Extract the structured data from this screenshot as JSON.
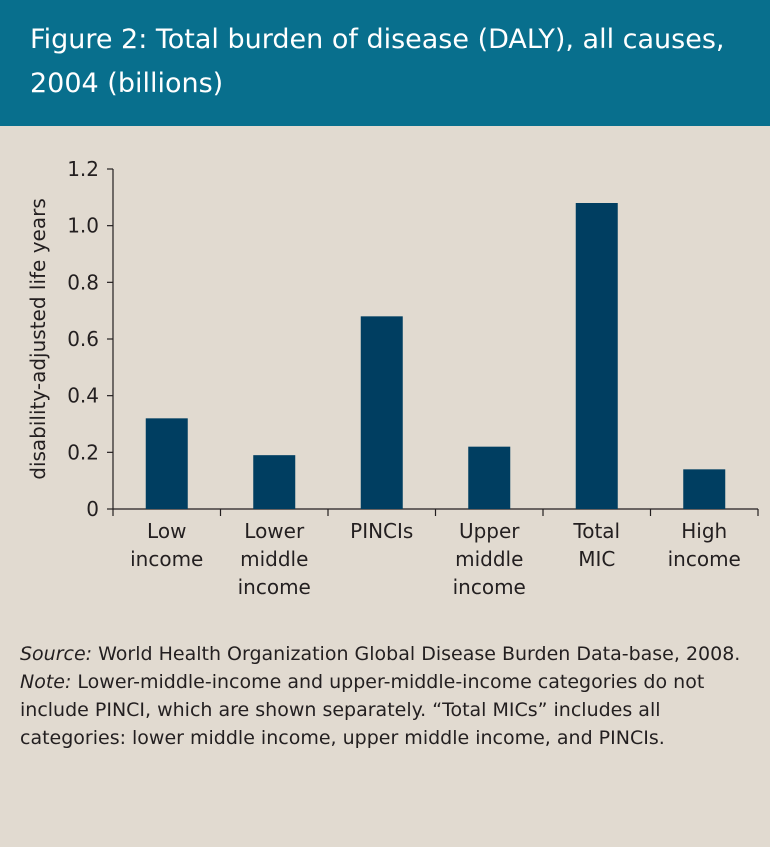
{
  "header": {
    "title_line1": "Figure 2: Total burden of disease (DALY), all causes,",
    "title_line2": "2004 (billions)"
  },
  "chart_data": {
    "type": "bar",
    "title": "Figure 2: Total burden of disease (DALY), all causes, 2004 (billions)",
    "ylabel": "disability-adjusted life years",
    "categories": [
      [
        "Low",
        "income"
      ],
      [
        "Lower",
        "middle",
        "income"
      ],
      [
        "PINCIs"
      ],
      [
        "Upper",
        "middle",
        "income"
      ],
      [
        "Total",
        "MIC"
      ],
      [
        "High",
        "income"
      ]
    ],
    "values": [
      0.32,
      0.19,
      0.68,
      0.22,
      1.08,
      0.14
    ],
    "ylim": [
      0,
      1.2
    ],
    "yticks": [
      "0",
      "0.2",
      "0.4",
      "0.6",
      "0.8",
      "1.0",
      "1.2"
    ],
    "bar_color": "#003e61",
    "grid": false
  },
  "notes": {
    "source_label": "Source:",
    "source_text": " World Health Organization Global Disease Burden Data-base, 2008.",
    "note_label": "Note:",
    "note_text": " Lower-middle-income and upper-middle-income categories do not include PINCI, which are shown separately. “Total MICs” includes all categories: lower middle income, upper middle income, and PINCIs."
  },
  "colors": {
    "header_bg": "#086f8d",
    "page_bg": "#e1dad0",
    "bar": "#003e61"
  }
}
